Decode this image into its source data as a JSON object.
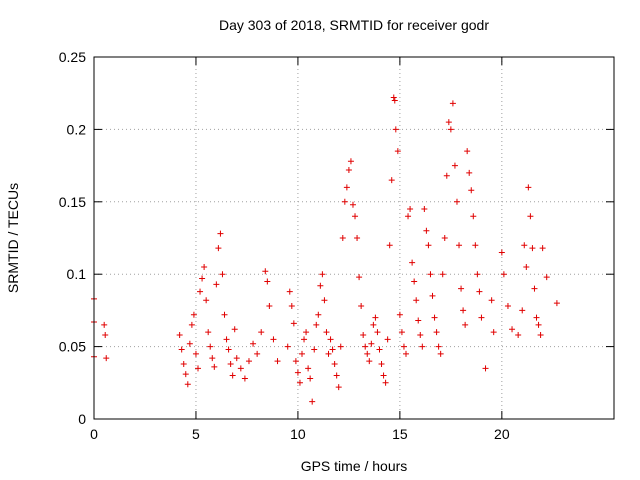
{
  "chart_data": {
    "type": "scatter",
    "title": "Day 303 of 2018, SRMTID for receiver godr",
    "xlabel": "GPS time / hours",
    "ylabel": "SRMTID / TECUs",
    "xlim": [
      0,
      25.5
    ],
    "ylim": [
      0,
      0.25
    ],
    "xticks": [
      0,
      5,
      10,
      15,
      20
    ],
    "xtick_labels": [
      "0",
      "5",
      "10",
      "15",
      "20"
    ],
    "yticks": [
      0,
      0.05,
      0.1,
      0.15,
      0.2,
      0.25
    ],
    "ytick_labels": [
      "0",
      "0.05",
      "0.1",
      "0.15",
      "0.2",
      "0.25"
    ],
    "grid": true,
    "marker": "+",
    "marker_color": "#e00000",
    "series": [
      {
        "name": "SRMTID",
        "points": [
          [
            0.0,
            0.083
          ],
          [
            0.0,
            0.067
          ],
          [
            0.0,
            0.043
          ],
          [
            0.5,
            0.065
          ],
          [
            0.55,
            0.058
          ],
          [
            0.6,
            0.042
          ],
          [
            4.2,
            0.058
          ],
          [
            4.3,
            0.048
          ],
          [
            4.4,
            0.038
          ],
          [
            4.5,
            0.031
          ],
          [
            4.6,
            0.024
          ],
          [
            4.7,
            0.052
          ],
          [
            4.8,
            0.065
          ],
          [
            4.9,
            0.072
          ],
          [
            5.0,
            0.045
          ],
          [
            5.1,
            0.035
          ],
          [
            5.2,
            0.088
          ],
          [
            5.3,
            0.097
          ],
          [
            5.4,
            0.105
          ],
          [
            5.5,
            0.082
          ],
          [
            5.6,
            0.06
          ],
          [
            5.7,
            0.05
          ],
          [
            5.8,
            0.042
          ],
          [
            5.9,
            0.036
          ],
          [
            6.0,
            0.093
          ],
          [
            6.1,
            0.118
          ],
          [
            6.2,
            0.128
          ],
          [
            6.3,
            0.1
          ],
          [
            6.4,
            0.072
          ],
          [
            6.5,
            0.055
          ],
          [
            6.6,
            0.048
          ],
          [
            6.7,
            0.038
          ],
          [
            6.8,
            0.03
          ],
          [
            6.9,
            0.062
          ],
          [
            7.0,
            0.042
          ],
          [
            7.2,
            0.035
          ],
          [
            7.4,
            0.028
          ],
          [
            7.6,
            0.04
          ],
          [
            7.8,
            0.052
          ],
          [
            8.0,
            0.045
          ],
          [
            8.2,
            0.06
          ],
          [
            8.4,
            0.102
          ],
          [
            8.5,
            0.095
          ],
          [
            8.6,
            0.078
          ],
          [
            8.8,
            0.055
          ],
          [
            9.0,
            0.04
          ],
          [
            9.5,
            0.05
          ],
          [
            9.6,
            0.088
          ],
          [
            9.7,
            0.078
          ],
          [
            9.8,
            0.066
          ],
          [
            9.9,
            0.04
          ],
          [
            10.0,
            0.032
          ],
          [
            10.1,
            0.025
          ],
          [
            10.2,
            0.045
          ],
          [
            10.3,
            0.055
          ],
          [
            10.4,
            0.06
          ],
          [
            10.5,
            0.035
          ],
          [
            10.6,
            0.028
          ],
          [
            10.7,
            0.012
          ],
          [
            10.8,
            0.048
          ],
          [
            10.9,
            0.065
          ],
          [
            11.0,
            0.072
          ],
          [
            11.1,
            0.092
          ],
          [
            11.2,
            0.1
          ],
          [
            11.3,
            0.082
          ],
          [
            11.4,
            0.06
          ],
          [
            11.5,
            0.045
          ],
          [
            11.6,
            0.055
          ],
          [
            11.7,
            0.048
          ],
          [
            11.8,
            0.038
          ],
          [
            11.9,
            0.03
          ],
          [
            12.0,
            0.022
          ],
          [
            12.1,
            0.05
          ],
          [
            12.2,
            0.125
          ],
          [
            12.3,
            0.15
          ],
          [
            12.4,
            0.16
          ],
          [
            12.5,
            0.172
          ],
          [
            12.6,
            0.178
          ],
          [
            12.7,
            0.148
          ],
          [
            12.8,
            0.14
          ],
          [
            12.9,
            0.125
          ],
          [
            13.0,
            0.098
          ],
          [
            13.1,
            0.078
          ],
          [
            13.2,
            0.058
          ],
          [
            13.3,
            0.05
          ],
          [
            13.4,
            0.045
          ],
          [
            13.5,
            0.04
          ],
          [
            13.6,
            0.052
          ],
          [
            13.7,
            0.065
          ],
          [
            13.8,
            0.07
          ],
          [
            13.9,
            0.06
          ],
          [
            14.0,
            0.048
          ],
          [
            14.1,
            0.038
          ],
          [
            14.2,
            0.03
          ],
          [
            14.3,
            0.025
          ],
          [
            14.4,
            0.055
          ],
          [
            14.5,
            0.12
          ],
          [
            14.6,
            0.165
          ],
          [
            14.7,
            0.222
          ],
          [
            14.75,
            0.22
          ],
          [
            14.8,
            0.2
          ],
          [
            14.9,
            0.185
          ],
          [
            15.0,
            0.072
          ],
          [
            15.1,
            0.06
          ],
          [
            15.2,
            0.05
          ],
          [
            15.3,
            0.045
          ],
          [
            15.4,
            0.14
          ],
          [
            15.5,
            0.145
          ],
          [
            15.6,
            0.108
          ],
          [
            15.7,
            0.095
          ],
          [
            15.8,
            0.082
          ],
          [
            15.9,
            0.068
          ],
          [
            16.0,
            0.058
          ],
          [
            16.1,
            0.05
          ],
          [
            16.2,
            0.145
          ],
          [
            16.3,
            0.13
          ],
          [
            16.4,
            0.12
          ],
          [
            16.5,
            0.1
          ],
          [
            16.6,
            0.085
          ],
          [
            16.7,
            0.07
          ],
          [
            16.8,
            0.06
          ],
          [
            16.9,
            0.05
          ],
          [
            17.0,
            0.045
          ],
          [
            17.1,
            0.1
          ],
          [
            17.2,
            0.125
          ],
          [
            17.3,
            0.168
          ],
          [
            17.4,
            0.205
          ],
          [
            17.5,
            0.2
          ],
          [
            17.6,
            0.218
          ],
          [
            17.7,
            0.175
          ],
          [
            17.8,
            0.15
          ],
          [
            17.9,
            0.12
          ],
          [
            18.0,
            0.09
          ],
          [
            18.1,
            0.075
          ],
          [
            18.2,
            0.065
          ],
          [
            18.3,
            0.185
          ],
          [
            18.4,
            0.17
          ],
          [
            18.5,
            0.158
          ],
          [
            18.6,
            0.14
          ],
          [
            18.7,
            0.12
          ],
          [
            18.8,
            0.1
          ],
          [
            18.9,
            0.088
          ],
          [
            19.0,
            0.07
          ],
          [
            19.2,
            0.035
          ],
          [
            19.5,
            0.082
          ],
          [
            19.6,
            0.06
          ],
          [
            20.0,
            0.115
          ],
          [
            20.1,
            0.1
          ],
          [
            20.3,
            0.078
          ],
          [
            20.5,
            0.062
          ],
          [
            20.8,
            0.058
          ],
          [
            21.0,
            0.075
          ],
          [
            21.1,
            0.12
          ],
          [
            21.2,
            0.105
          ],
          [
            21.3,
            0.16
          ],
          [
            21.4,
            0.14
          ],
          [
            21.5,
            0.118
          ],
          [
            21.6,
            0.09
          ],
          [
            21.7,
            0.07
          ],
          [
            21.8,
            0.065
          ],
          [
            21.9,
            0.058
          ],
          [
            22.0,
            0.118
          ],
          [
            22.2,
            0.098
          ],
          [
            22.7,
            0.08
          ]
        ]
      }
    ]
  }
}
